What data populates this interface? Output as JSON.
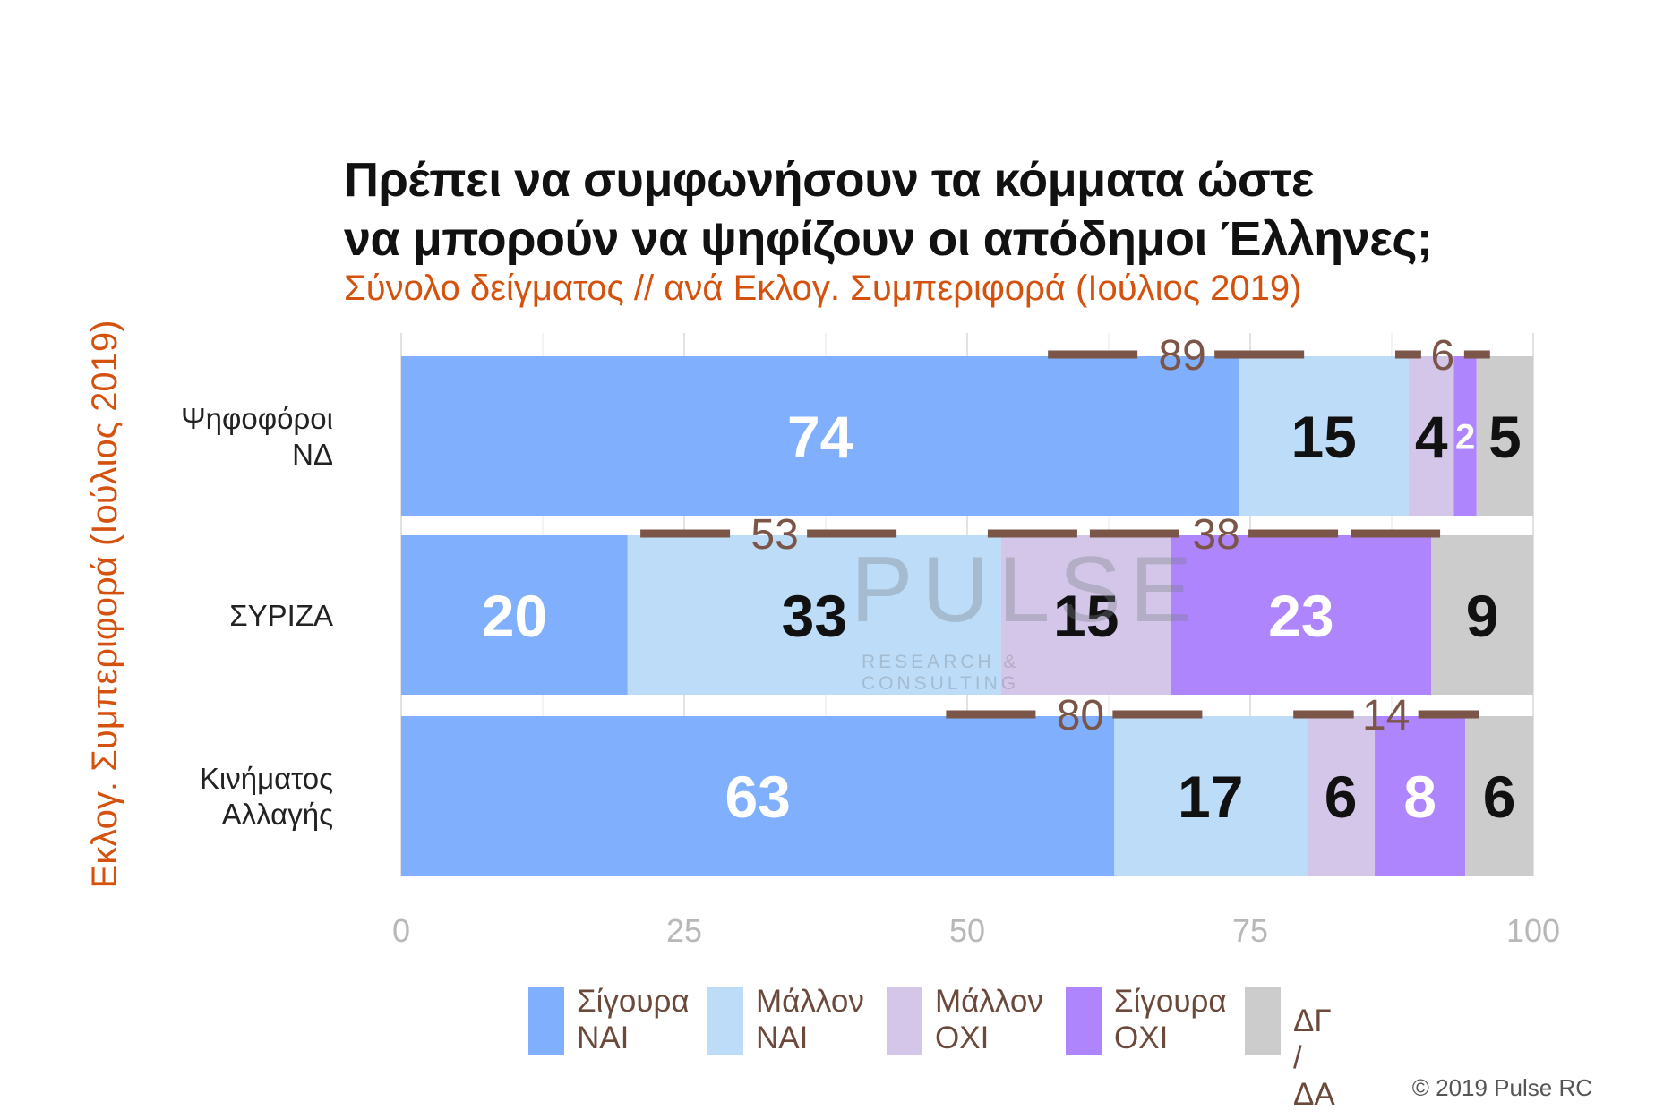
{
  "chart_data": {
    "type": "bar",
    "orientation": "horizontal-stacked",
    "title_lines": [
      "Πρέπει να συμφωνήσουν τα κόμματα ώστε",
      "να μπορούν να ψηφίζουν οι απόδημοι Έλληνες;"
    ],
    "subtitle": "Σύνολο δείγματος // ανά Εκλογ. Συμπεριφορά (Ιούλιος 2019)",
    "ylabel": "Εκλογ. Συμπεριφορά (Ιούλιος 2019)",
    "xlabel": "",
    "xlim": [
      0,
      100
    ],
    "xticks": [
      "0",
      "25",
      "50",
      "75",
      "100"
    ],
    "categories": [
      "Ψηφοφόροι ΝΔ",
      "ΣΥΡΙΖΑ",
      "Κινήματος Αλλαγής"
    ],
    "category_label_lines": [
      [
        "Ψηφοφόροι",
        "ΝΔ"
      ],
      [
        "ΣΥΡΙΖΑ"
      ],
      [
        "Κινήματος",
        "Αλλαγής"
      ]
    ],
    "series": [
      {
        "name": "Σίγουρα ΝΑΙ",
        "values": [
          74,
          20,
          63
        ],
        "color": "#80b0fd",
        "label_color": "#ffffff"
      },
      {
        "name": "Μάλλον ΝΑΙ",
        "values": [
          15,
          33,
          17
        ],
        "color": "#bcdcf8",
        "label_color": "#111111"
      },
      {
        "name": "Μάλλον ΟΧΙ",
        "values": [
          4,
          15,
          6
        ],
        "color": "#d4c6e8",
        "label_color": "#111111"
      },
      {
        "name": "Σίγουρα ΟΧΙ",
        "values": [
          2,
          23,
          8
        ],
        "color": "#ae85fc",
        "label_color": "#ffffff"
      },
      {
        "name": "ΔΓ / ΔΑ",
        "values": [
          5,
          9,
          6
        ],
        "color": "#cccccc",
        "label_color": "#111111"
      }
    ],
    "totals": [
      {
        "yes": 89,
        "no": 6
      },
      {
        "yes": 53,
        "no": 38
      },
      {
        "yes": 80,
        "no": 14
      }
    ],
    "total_color": "#7a5548",
    "grid": true,
    "legend_position": "bottom"
  },
  "legend": [
    {
      "line1": "Σίγουρα",
      "line2": "ΝΑΙ",
      "color": "#80b0fd"
    },
    {
      "line1": "Μάλλον",
      "line2": "ΝΑΙ",
      "color": "#bcdcf8"
    },
    {
      "line1": "Μάλλον",
      "line2": "ΟΧΙ",
      "color": "#d4c6e8"
    },
    {
      "line1": "Σίγουρα",
      "line2": "ΟΧΙ",
      "color": "#ae85fc"
    },
    {
      "line1": "ΔΓ / ΔΑ",
      "line2": "",
      "color": "#cccccc"
    }
  ],
  "watermark": {
    "logo": "PULSE",
    "tagline": "RESEARCH & CONSULTING"
  },
  "credit": "© 2019 Pulse RC"
}
